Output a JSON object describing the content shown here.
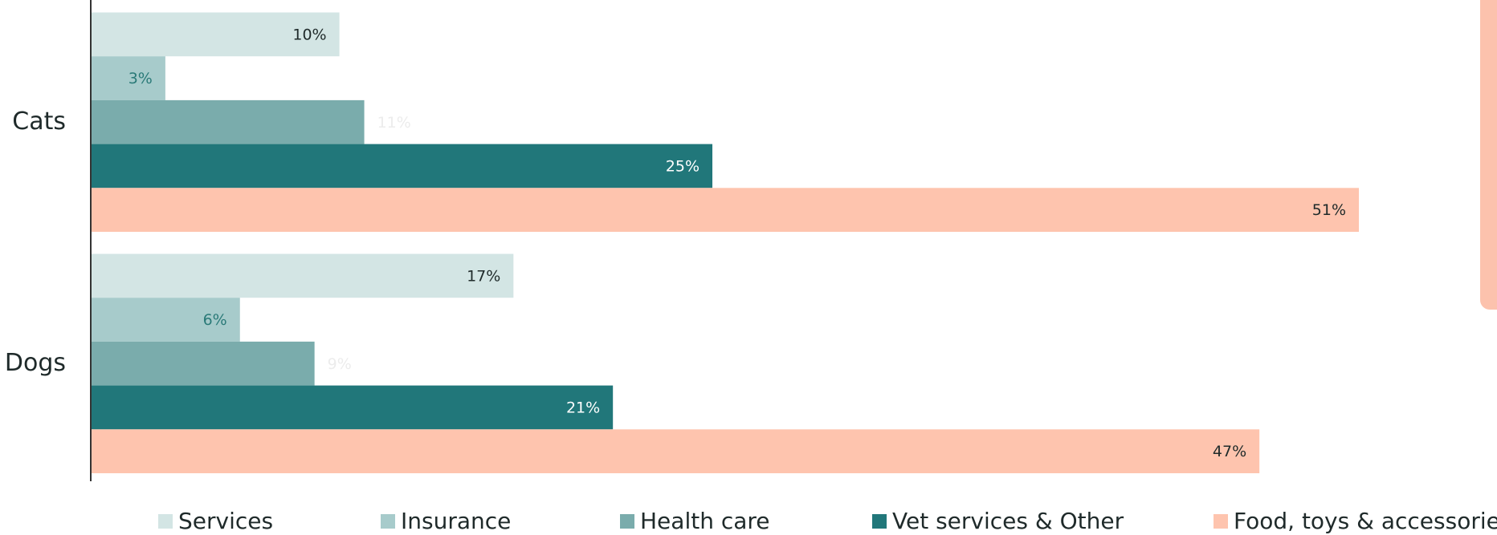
{
  "chart_data": {
    "type": "hbar",
    "categories": [
      "Cats",
      "Dogs"
    ],
    "series": [
      {
        "name": "Services",
        "color": "#d3e5e4",
        "label_color": "#1f2a2a",
        "label_position": "inside",
        "values": [
          10,
          17
        ],
        "value_labels": [
          "10%",
          "17%"
        ]
      },
      {
        "name": "Insurance",
        "color": "#a7cbcb",
        "label_color": "#2a7a78",
        "label_position": "inside",
        "values": [
          3,
          6
        ],
        "value_labels": [
          "3%",
          "6%"
        ]
      },
      {
        "name": "Health care",
        "color": "#7aacac",
        "label_color": "#ececec",
        "label_position": "outside",
        "values": [
          11,
          9
        ],
        "value_labels": [
          "11%",
          "9%"
        ]
      },
      {
        "name": "Vet services & Other",
        "color": "#21777a",
        "label_color": "#ffffff",
        "label_position": "inside",
        "values": [
          25,
          21
        ],
        "value_labels": [
          "25%",
          "21%"
        ]
      },
      {
        "name": "Food, toys & accessories",
        "color": "#fec4ae",
        "label_color": "#1f2a2a",
        "label_position": "inside",
        "values": [
          51,
          47
        ],
        "value_labels": [
          "51%",
          "47%"
        ]
      }
    ],
    "legend": "bottom"
  }
}
